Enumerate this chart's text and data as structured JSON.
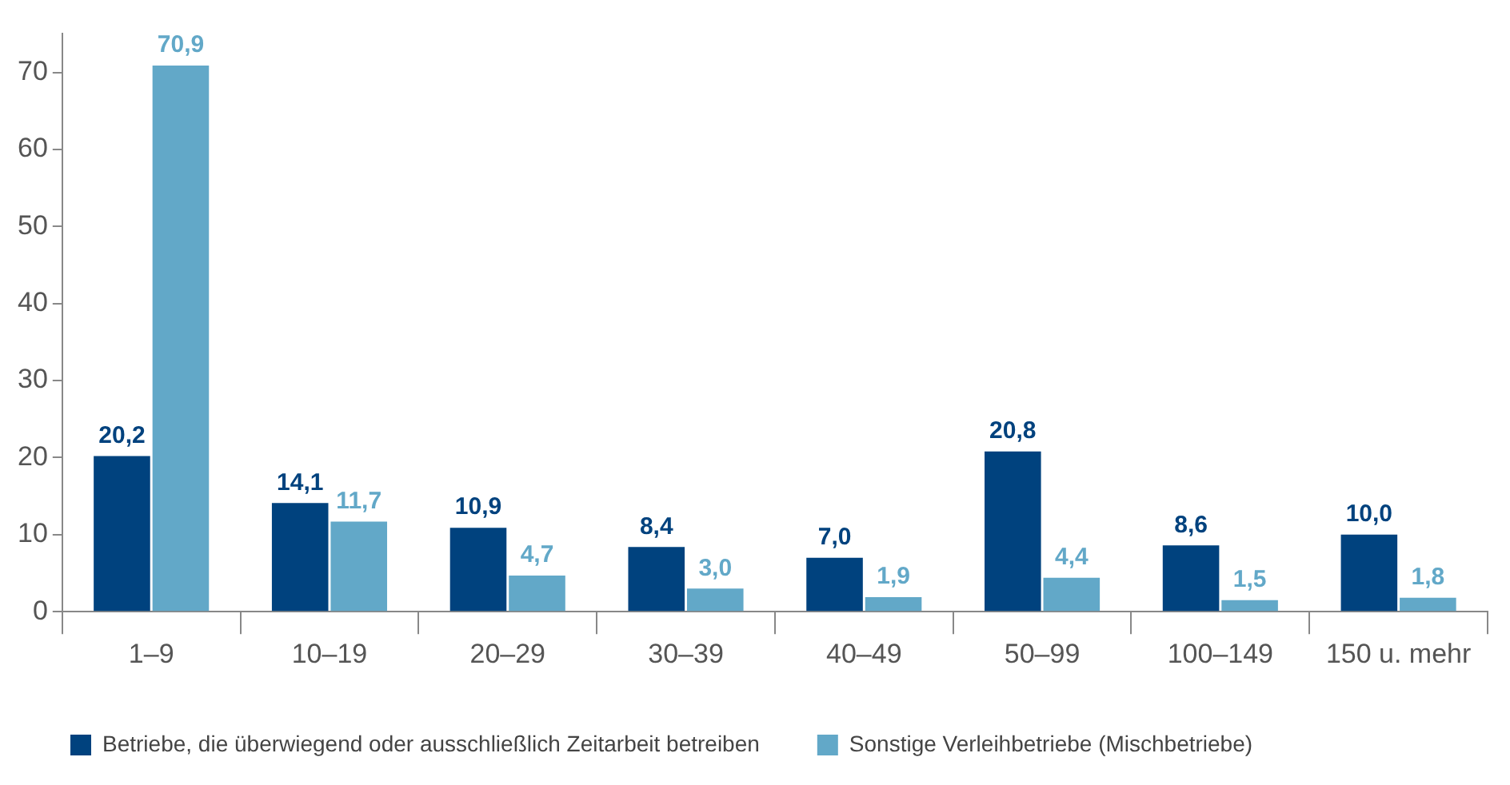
{
  "chart_data": {
    "type": "bar",
    "categories": [
      "1–9",
      "10–19",
      "20–29",
      "30–39",
      "40–49",
      "50–99",
      "100–149",
      "150 u. mehr"
    ],
    "series": [
      {
        "name": "Betriebe, die überwiegend oder ausschließlich Zeitarbeit betreiben",
        "color": "#00427e",
        "values": [
          20.2,
          14.1,
          10.9,
          8.4,
          7.0,
          20.8,
          8.6,
          10.0
        ],
        "value_labels": [
          "20,2",
          "14,1",
          "10,9",
          "8,4",
          "7,0",
          "20,8",
          "8,6",
          "10,0"
        ]
      },
      {
        "name": "Sonstige Verleihbetriebe (Mischbetriebe)",
        "color": "#62a8c8",
        "values": [
          70.9,
          11.7,
          4.7,
          3.0,
          1.9,
          4.4,
          1.5,
          1.8
        ],
        "value_labels": [
          "70,9",
          "11,7",
          "4,7",
          "3,0",
          "1,9",
          "4,4",
          "1,5",
          "1,8"
        ]
      }
    ],
    "ylim": [
      0,
      75
    ],
    "yticks": [
      0,
      10,
      20,
      30,
      40,
      50,
      60,
      70
    ],
    "grid": false,
    "legend": "bottom"
  }
}
